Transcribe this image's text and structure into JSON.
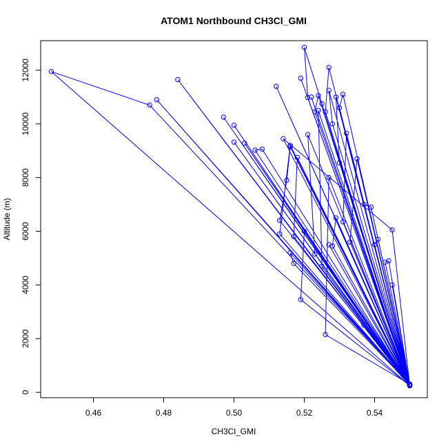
{
  "chart_data": {
    "type": "line",
    "title": "ATOM1 Northbound CH3Cl_GMI",
    "xlabel": "CH3Cl_GMI",
    "ylabel": "Altitude (m)",
    "xlim": [
      0.445,
      0.555
    ],
    "ylim": [
      -200,
      13100
    ],
    "x_ticks": [
      0.46,
      0.48,
      0.5,
      0.52,
      0.54
    ],
    "x_tick_labels": [
      "0.46",
      "0.48",
      "0.50",
      "0.52",
      "0.54"
    ],
    "y_ticks": [
      0,
      2000,
      4000,
      6000,
      8000,
      10000,
      12000
    ],
    "y_tick_labels": [
      "0",
      "2000",
      "4000",
      "6000",
      "8000",
      "10000",
      "12000"
    ],
    "color": "#0000ff",
    "marker": "open-circle",
    "grid": false,
    "series": [
      {
        "x": [
          0.55,
          0.448,
          0.476,
          0.55,
          0.478,
          0.55,
          0.484,
          0.55,
          0.497,
          0.55,
          0.5,
          0.55,
          0.5,
          0.55,
          0.503,
          0.55,
          0.506,
          0.508,
          0.55,
          0.512,
          0.55,
          0.513,
          0.515,
          0.516,
          0.55,
          0.516,
          0.517,
          0.55,
          0.519,
          0.55,
          0.52,
          0.521,
          0.55,
          0.522,
          0.55,
          0.523,
          0.524,
          0.55,
          0.525,
          0.55,
          0.526,
          0.527,
          0.55,
          0.527,
          0.528,
          0.55,
          0.529,
          0.53,
          0.55,
          0.53,
          0.531,
          0.55,
          0.532,
          0.531,
          0.55,
          0.533,
          0.535,
          0.55,
          0.537,
          0.539,
          0.55,
          0.54,
          0.541,
          0.55,
          0.543,
          0.544,
          0.55,
          0.545,
          0.55,
          0.545,
          0.514,
          0.55,
          0.513,
          0.516,
          0.55,
          0.518,
          0.517,
          0.55,
          0.519,
          0.52,
          0.55,
          0.521,
          0.523,
          0.55,
          0.524,
          0.525,
          0.55,
          0.526,
          0.527,
          0.55,
          0.528,
          0.529,
          0.55,
          0.527,
          0.55,
          0.537,
          0.55
        ],
        "y": [
          250,
          11950,
          10700,
          300,
          10900,
          250,
          11650,
          300,
          10250,
          250,
          9950,
          280,
          9320,
          260,
          9280,
          300,
          9020,
          9060,
          260,
          11400,
          300,
          6400,
          7900,
          9150,
          270,
          5200,
          4800,
          300,
          11700,
          280,
          12850,
          10980,
          260,
          11000,
          300,
          10450,
          11050,
          280,
          10750,
          250,
          10450,
          12100,
          260,
          11250,
          10000,
          300,
          11000,
          8550,
          270,
          10600,
          11100,
          250,
          9650,
          6350,
          280,
          5600,
          8700,
          260,
          7000,
          6900,
          250,
          5500,
          5700,
          300,
          4850,
          4900,
          270,
          4000,
          260,
          6050,
          9450,
          280,
          5900,
          9200,
          300,
          8750,
          5800,
          250,
          3450,
          6000,
          280,
          9600,
          5150,
          260,
          10500,
          4700,
          300,
          2150,
          8000,
          280,
          5450,
          6500,
          260,
          5500,
          250,
          2500,
          280
        ]
      }
    ]
  }
}
